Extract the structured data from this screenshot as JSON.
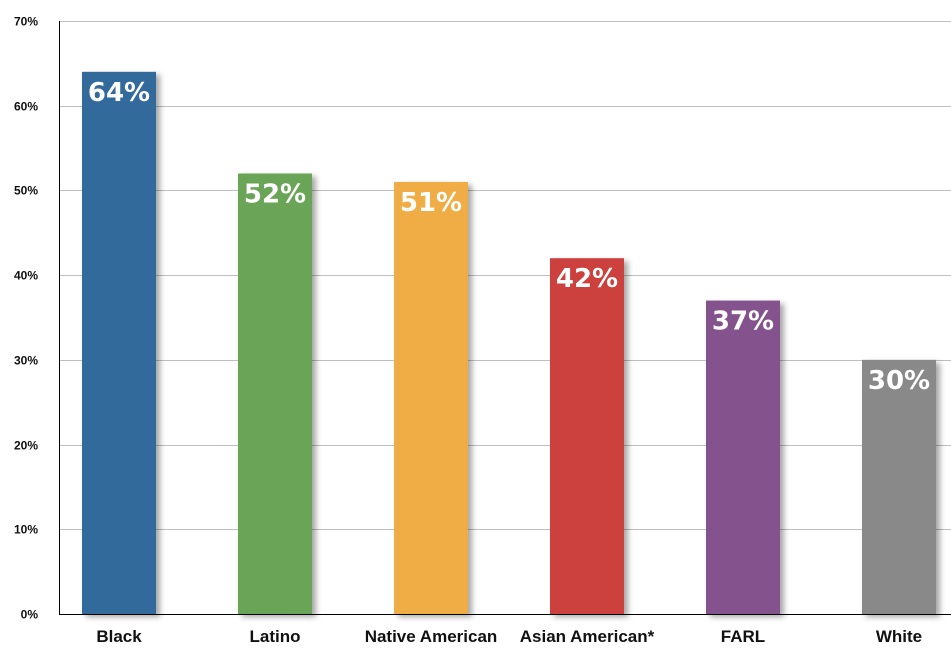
{
  "chart_data": {
    "type": "bar",
    "title": "",
    "xlabel": "",
    "ylabel": "",
    "categories": [
      "Black",
      "Latino",
      "Native American",
      "Asian American*",
      "FARL",
      "White"
    ],
    "values": [
      64,
      52,
      51,
      42,
      37,
      30
    ],
    "value_labels": [
      "64%",
      "52%",
      "51%",
      "42%",
      "37%",
      "30%"
    ],
    "colors": [
      "#336a9c",
      "#6aa457",
      "#f0ad45",
      "#cc3f3c",
      "#84528d",
      "#898989"
    ],
    "ylim": [
      0,
      70
    ],
    "yticks": [
      0,
      10,
      20,
      30,
      40,
      50,
      60,
      70
    ],
    "ytick_labels": [
      "0%",
      "10%",
      "20%",
      "30%",
      "40%",
      "50%",
      "60%",
      "70%"
    ],
    "grid": true,
    "legend": "none"
  }
}
